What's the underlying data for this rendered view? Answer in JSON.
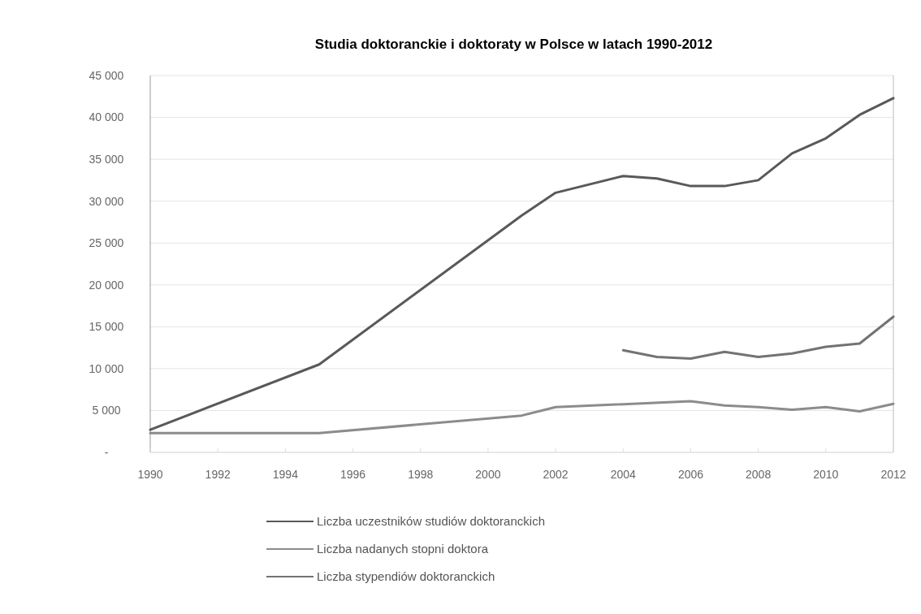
{
  "chart_data": {
    "type": "line",
    "title": "Studia doktoranckie i doktoraty w Polsce w latach 1990-2012",
    "xlim": [
      1990,
      2012
    ],
    "xticks": [
      1990,
      1992,
      1994,
      1996,
      1998,
      2000,
      2002,
      2004,
      2006,
      2008,
      2010,
      2012
    ],
    "ylim": [
      0,
      45000
    ],
    "yticks": [
      {
        "value": 0,
        "label": "-"
      },
      {
        "value": 5000,
        "label": "5 000"
      },
      {
        "value": 10000,
        "label": "10 000"
      },
      {
        "value": 15000,
        "label": "15 000"
      },
      {
        "value": 20000,
        "label": "20 000"
      },
      {
        "value": 25000,
        "label": "25 000"
      },
      {
        "value": 30000,
        "label": "30 000"
      },
      {
        "value": 35000,
        "label": "35 000"
      },
      {
        "value": 40000,
        "label": "40 000"
      },
      {
        "value": 45000,
        "label": "45 000"
      }
    ],
    "grid": "y",
    "legend": "bottom",
    "marker": "none",
    "line_style": "solid",
    "series": [
      {
        "name": "Liczba uczestników studiów doktoranckich",
        "color": "#595959",
        "x": [
          1990,
          1995,
          2001,
          2002,
          2004,
          2005,
          2006,
          2007,
          2008,
          2009,
          2010,
          2011,
          2012
        ],
        "values": [
          2700,
          10500,
          28300,
          31000,
          33000,
          32700,
          31800,
          31800,
          32500,
          35700,
          37500,
          40300,
          42300
        ]
      },
      {
        "name": "Liczba nadanych stopni doktora",
        "color": "#8c8c8c",
        "x": [
          1990,
          1995,
          2001,
          2002,
          2006,
          2007,
          2008,
          2009,
          2010,
          2011,
          2012
        ],
        "values": [
          2300,
          2300,
          4400,
          5400,
          6100,
          5600,
          5400,
          5100,
          5400,
          4900,
          5800
        ]
      },
      {
        "name": "Liczba stypendiów doktoranckich",
        "color": "#737373",
        "x": [
          2004,
          2005,
          2006,
          2007,
          2008,
          2009,
          2010,
          2011,
          2012
        ],
        "values": [
          12200,
          11400,
          11200,
          12000,
          11400,
          11800,
          12600,
          13000,
          16200
        ]
      }
    ]
  }
}
